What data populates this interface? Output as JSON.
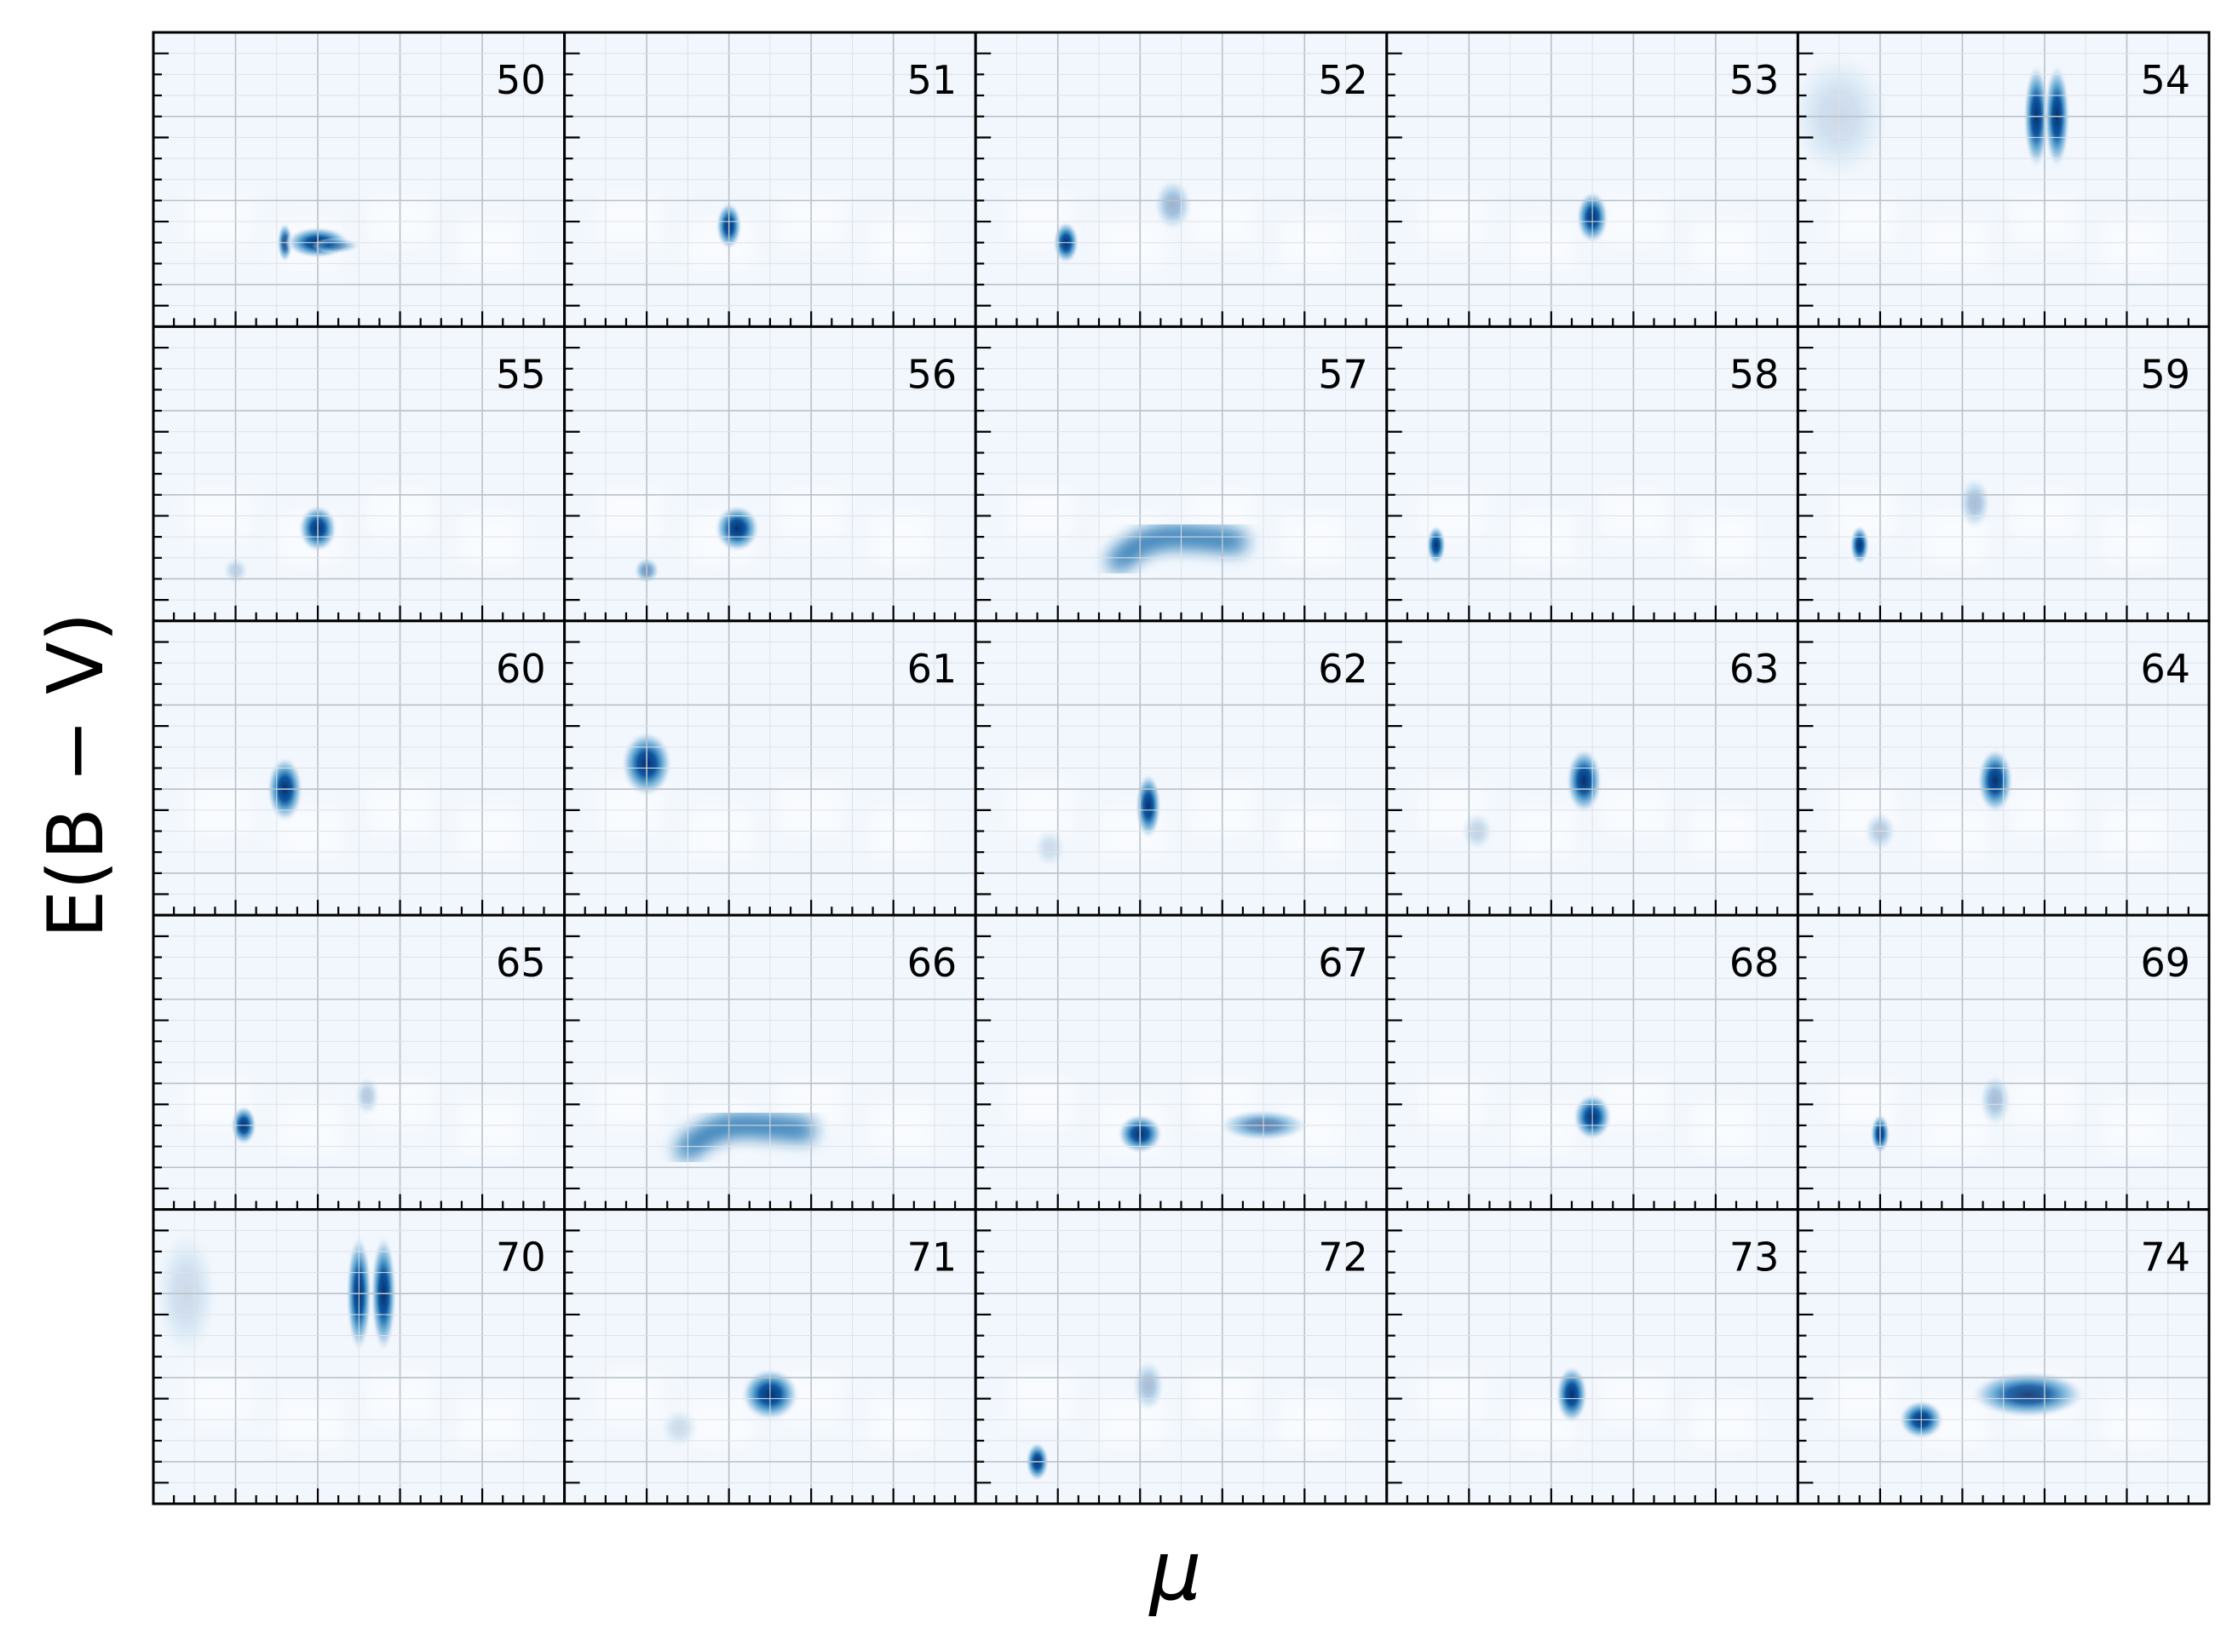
{
  "figure": {
    "xlabel": "μ",
    "ylabel": "E(B − V)",
    "grid": true,
    "colormap": [
      "#f7fbff",
      "#deebf7",
      "#c6dbef",
      "#9ecae1",
      "#6baed6",
      "#4292c6",
      "#2171b5",
      "#08519c",
      "#08306b"
    ]
  },
  "chart_data": [
    {
      "panel": "50",
      "type": "heatmap",
      "blobs": [
        {
          "mu": 3.2,
          "ebv": 1.0,
          "w": 0.12,
          "h": 0.15,
          "amp": 0.85
        },
        {
          "mu": 4.0,
          "ebv": 1.0,
          "w": 0.5,
          "h": 0.12,
          "amp": 1.0,
          "tail": 1.5
        }
      ]
    },
    {
      "panel": "51",
      "type": "heatmap",
      "blobs": [
        {
          "mu": 4.0,
          "ebv": 1.2,
          "w": 0.2,
          "h": 0.18,
          "amp": 1.0
        }
      ]
    },
    {
      "panel": "52",
      "type": "heatmap",
      "blobs": [
        {
          "mu": 2.2,
          "ebv": 1.0,
          "w": 0.2,
          "h": 0.16,
          "amp": 1.0
        },
        {
          "mu": 4.8,
          "ebv": 1.45,
          "w": 0.3,
          "h": 0.2,
          "amp": 0.35
        }
      ]
    },
    {
      "panel": "53",
      "type": "heatmap",
      "blobs": [
        {
          "mu": 5.0,
          "ebv": 1.3,
          "w": 0.25,
          "h": 0.2,
          "amp": 1.0
        }
      ]
    },
    {
      "panel": "54",
      "type": "heatmap",
      "blobs": [
        {
          "mu": 5.8,
          "ebv": 2.5,
          "w": 0.2,
          "h": 0.4,
          "amp": 1.0
        },
        {
          "mu": 6.3,
          "ebv": 2.5,
          "w": 0.2,
          "h": 0.4,
          "amp": 1.0
        },
        {
          "mu": 1.0,
          "ebv": 2.5,
          "w": 0.8,
          "h": 0.5,
          "amp": 0.08
        }
      ]
    },
    {
      "panel": "55",
      "type": "heatmap",
      "blobs": [
        {
          "mu": 4.0,
          "ebv": 1.1,
          "w": 0.3,
          "h": 0.18,
          "amp": 1.0
        },
        {
          "mu": 2.0,
          "ebv": 0.6,
          "w": 0.2,
          "h": 0.1,
          "amp": 0.2
        }
      ]
    },
    {
      "panel": "56",
      "type": "heatmap",
      "blobs": [
        {
          "mu": 4.2,
          "ebv": 1.1,
          "w": 0.35,
          "h": 0.18,
          "amp": 1.0
        },
        {
          "mu": 2.0,
          "ebv": 0.6,
          "w": 0.2,
          "h": 0.1,
          "amp": 0.5
        }
      ]
    },
    {
      "panel": "57",
      "type": "heatmap",
      "blobs": [
        {
          "mu": 5.0,
          "ebv": 1.0,
          "w": 1.8,
          "h": 0.12,
          "amp": 0.9,
          "arc": true
        }
      ]
    },
    {
      "panel": "58",
      "type": "heatmap",
      "blobs": [
        {
          "mu": 1.2,
          "ebv": 0.9,
          "w": 0.15,
          "h": 0.15,
          "amp": 1.0
        }
      ]
    },
    {
      "panel": "59",
      "type": "heatmap",
      "blobs": [
        {
          "mu": 1.5,
          "ebv": 0.9,
          "w": 0.15,
          "h": 0.15,
          "amp": 1.0
        },
        {
          "mu": 4.3,
          "ebv": 1.4,
          "w": 0.25,
          "h": 0.2,
          "amp": 0.3
        }
      ]
    },
    {
      "panel": "60",
      "type": "heatmap",
      "blobs": [
        {
          "mu": 3.2,
          "ebv": 1.5,
          "w": 0.28,
          "h": 0.25,
          "amp": 1.0
        }
      ]
    },
    {
      "panel": "61",
      "type": "heatmap",
      "blobs": [
        {
          "mu": 2.0,
          "ebv": 1.8,
          "w": 0.4,
          "h": 0.25,
          "amp": 1.0
        }
      ]
    },
    {
      "panel": "62",
      "type": "heatmap",
      "blobs": [
        {
          "mu": 4.2,
          "ebv": 1.3,
          "w": 0.2,
          "h": 0.25,
          "amp": 1.0
        },
        {
          "mu": 1.8,
          "ebv": 0.8,
          "w": 0.25,
          "h": 0.15,
          "amp": 0.1
        }
      ]
    },
    {
      "panel": "63",
      "type": "heatmap",
      "blobs": [
        {
          "mu": 4.8,
          "ebv": 1.6,
          "w": 0.28,
          "h": 0.25,
          "amp": 1.0
        },
        {
          "mu": 2.2,
          "ebv": 1.0,
          "w": 0.25,
          "h": 0.15,
          "amp": 0.2
        }
      ]
    },
    {
      "panel": "64",
      "type": "heatmap",
      "blobs": [
        {
          "mu": 4.8,
          "ebv": 1.6,
          "w": 0.28,
          "h": 0.25,
          "amp": 1.0
        },
        {
          "mu": 2.0,
          "ebv": 1.0,
          "w": 0.25,
          "h": 0.15,
          "amp": 0.25
        }
      ]
    },
    {
      "panel": "65",
      "type": "heatmap",
      "blobs": [
        {
          "mu": 2.2,
          "ebv": 1.0,
          "w": 0.2,
          "h": 0.15,
          "amp": 1.0
        },
        {
          "mu": 5.2,
          "ebv": 1.35,
          "w": 0.2,
          "h": 0.15,
          "amp": 0.25
        }
      ]
    },
    {
      "panel": "66",
      "type": "heatmap",
      "blobs": [
        {
          "mu": 4.5,
          "ebv": 1.0,
          "w": 1.8,
          "h": 0.12,
          "amp": 0.9,
          "arc": true
        }
      ]
    },
    {
      "panel": "67",
      "type": "heatmap",
      "blobs": [
        {
          "mu": 4.0,
          "ebv": 0.9,
          "w": 0.35,
          "h": 0.15,
          "amp": 1.0
        },
        {
          "mu": 7.0,
          "ebv": 1.0,
          "w": 0.7,
          "h": 0.12,
          "amp": 0.6
        }
      ]
    },
    {
      "panel": "68",
      "type": "heatmap",
      "blobs": [
        {
          "mu": 5.0,
          "ebv": 1.1,
          "w": 0.3,
          "h": 0.18,
          "amp": 1.0
        }
      ]
    },
    {
      "panel": "69",
      "type": "heatmap",
      "blobs": [
        {
          "mu": 2.0,
          "ebv": 0.9,
          "w": 0.15,
          "h": 0.15,
          "amp": 1.0
        },
        {
          "mu": 4.8,
          "ebv": 1.3,
          "w": 0.25,
          "h": 0.2,
          "amp": 0.3
        }
      ]
    },
    {
      "panel": "70",
      "type": "heatmap",
      "blobs": [
        {
          "mu": 5.0,
          "ebv": 2.5,
          "w": 0.2,
          "h": 0.45,
          "amp": 1.0
        },
        {
          "mu": 5.6,
          "ebv": 2.5,
          "w": 0.2,
          "h": 0.45,
          "amp": 1.0
        },
        {
          "mu": 0.8,
          "ebv": 2.5,
          "w": 0.5,
          "h": 0.5,
          "amp": 0.08
        }
      ]
    },
    {
      "panel": "71",
      "type": "heatmap",
      "blobs": [
        {
          "mu": 5.0,
          "ebv": 1.3,
          "w": 0.45,
          "h": 0.2,
          "amp": 1.0
        },
        {
          "mu": 2.8,
          "ebv": 0.9,
          "w": 0.3,
          "h": 0.15,
          "amp": 0.1
        }
      ]
    },
    {
      "panel": "72",
      "type": "heatmap",
      "blobs": [
        {
          "mu": 1.5,
          "ebv": 0.5,
          "w": 0.18,
          "h": 0.15,
          "amp": 1.0
        },
        {
          "mu": 4.2,
          "ebv": 1.4,
          "w": 0.25,
          "h": 0.2,
          "amp": 0.3
        }
      ]
    },
    {
      "panel": "73",
      "type": "heatmap",
      "blobs": [
        {
          "mu": 4.5,
          "ebv": 1.3,
          "w": 0.25,
          "h": 0.22,
          "amp": 1.0
        }
      ]
    },
    {
      "panel": "74",
      "type": "heatmap",
      "blobs": [
        {
          "mu": 3.0,
          "ebv": 1.0,
          "w": 0.35,
          "h": 0.15,
          "amp": 1.0
        },
        {
          "mu": 5.6,
          "ebv": 1.3,
          "w": 0.9,
          "h": 0.18,
          "amp": 0.9
        }
      ]
    }
  ],
  "axes": {
    "xlim": [
      0,
      10
    ],
    "ylim": [
      0,
      3.5
    ]
  }
}
